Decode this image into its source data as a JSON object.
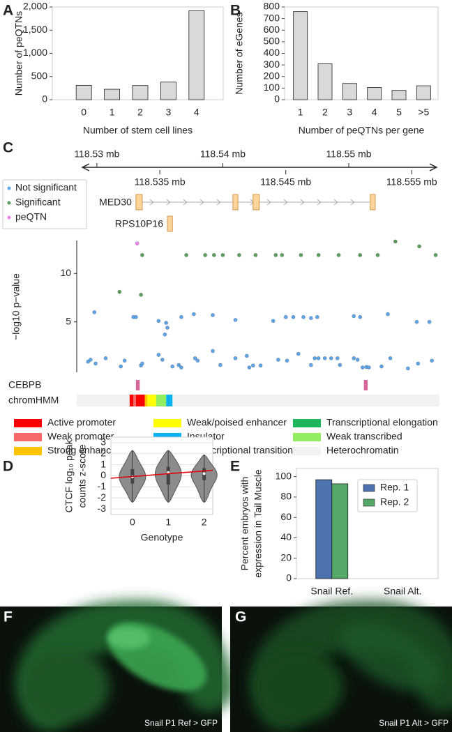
{
  "chart_data": [
    {
      "panel": "A",
      "type": "bar",
      "categories": [
        "0",
        "1",
        "2",
        "3",
        "4"
      ],
      "values": [
        310,
        225,
        305,
        380,
        1920
      ],
      "color": "#d9d9d9",
      "ylim": [
        0,
        2000
      ],
      "yticks": [
        0,
        500,
        {
          "value": 1000,
          "label": "1,000"
        },
        {
          "value": 1500,
          "label": "1,500"
        },
        {
          "value": 2000,
          "label": "2,000"
        }
      ],
      "ylabel": [
        "Number of peQTNs"
      ],
      "xlabel": "Number of stem cell lines"
    },
    {
      "panel": "B",
      "type": "bar",
      "categories": [
        "1",
        "2",
        "3",
        "4",
        "5",
        ">5"
      ],
      "values": [
        760,
        310,
        140,
        105,
        80,
        120
      ],
      "color": "#d9d9d9",
      "ylim": [
        0,
        800
      ],
      "yticks": [
        0,
        100,
        200,
        300,
        400,
        500,
        600,
        700,
        800
      ],
      "ylabel": [
        "Number of eGenes"
      ],
      "xlabel": "Number of peQTNs per gene"
    },
    {
      "panel": "C",
      "type": "scatter",
      "xlim": [
        118.5284,
        118.5572
      ],
      "xticks": [
        {
          "value": 118.53,
          "label": "118.53 mb"
        },
        {
          "value": 118.54,
          "label": "118.54 mb"
        },
        {
          "value": 118.55,
          "label": "118.55 mb"
        }
      ],
      "gene_axis_ticks": [
        {
          "value": 118.535,
          "label": "118.535 mb"
        },
        {
          "value": 118.545,
          "label": "118.545 mb"
        },
        {
          "value": 118.555,
          "label": "118.555 mb"
        }
      ],
      "ylim": [
        -0.2,
        13.4
      ],
      "yticks": [
        5,
        10
      ],
      "ylabel": "−log10 p−value",
      "genes": [
        {
          "name": "MED30",
          "color": "#fdd49a",
          "exons": [
            [
              118.5331,
              118.5336
            ],
            [
              118.5408,
              118.5412
            ],
            [
              118.5424,
              118.5429
            ],
            [
              118.5517,
              118.5521
            ]
          ]
        },
        {
          "name": "RPS10P16",
          "color": "#fdd49a",
          "exons": [
            [
              118.5356,
              118.536
            ]
          ]
        }
      ],
      "series": [
        {
          "name": "Not significant",
          "color": "#5da5e8",
          "x": [
            118.5298,
            118.5329,
            118.5331,
            118.5355,
            118.5356,
            118.5354,
            118.5349,
            118.5367,
            118.5377,
            118.5392,
            118.541,
            118.544,
            118.545,
            118.5456,
            118.5464,
            118.547,
            118.5475,
            118.5504,
            118.5509,
            118.5531,
            118.5554,
            118.5564,
            118.5293,
            118.5295,
            118.5307,
            118.5299,
            118.5319,
            118.5322,
            118.5335,
            118.5336,
            118.5349,
            118.5352,
            118.536,
            118.5365,
            118.5367,
            118.5378,
            118.538,
            118.5392,
            118.5398,
            118.541,
            118.5419,
            118.5421,
            118.5424,
            118.543,
            118.5444,
            118.5451,
            118.546,
            118.547,
            118.5473,
            118.5476,
            118.5481,
            118.5486,
            118.5491,
            118.5493,
            118.5504,
            118.5507,
            118.5511,
            118.5514,
            118.5516,
            118.5526,
            118.5533,
            118.5547,
            118.5555,
            118.5566
          ],
          "y": [
            6.0,
            5.5,
            5.5,
            4.9,
            4.4,
            3.7,
            5.1,
            5.5,
            5.8,
            5.7,
            5.2,
            5.1,
            5.5,
            5.5,
            5.5,
            5.4,
            5.5,
            5.6,
            5.5,
            5.8,
            5.0,
            5.0,
            0.9,
            1.1,
            1.25,
            0.7,
            0.4,
            1.0,
            0.5,
            0.7,
            1.6,
            1.1,
            0.4,
            0.55,
            0.3,
            1.25,
            1.0,
            2.0,
            0.55,
            1.25,
            1.5,
            0.3,
            0.5,
            0.5,
            1.1,
            1.0,
            1.7,
            0.55,
            1.25,
            1.25,
            1.25,
            1.25,
            1.25,
            0.55,
            1.25,
            1.1,
            0.3,
            0.35,
            0.3,
            0.4,
            1.25,
            0.2,
            0.7,
            1.0
          ]
        },
        {
          "name": "Significant",
          "color": "#5a9e5a",
          "x": [
            118.5336,
            118.5371,
            118.5386,
            118.5393,
            118.54,
            118.5413,
            118.5426,
            118.5442,
            118.5447,
            118.5462,
            118.5476,
            118.5492,
            118.5509,
            118.5523,
            118.5569,
            118.5537,
            118.5556,
            118.5318,
            118.5335
          ],
          "y": [
            11.9,
            11.9,
            11.9,
            11.9,
            11.9,
            11.9,
            11.9,
            11.9,
            11.9,
            11.9,
            11.9,
            11.9,
            11.9,
            11.9,
            11.9,
            13.3,
            12.8,
            8.1,
            7.8
          ]
        },
        {
          "name": "peQTN",
          "color": "#ee82ee",
          "x": [
            118.5332
          ],
          "y": [
            13.1
          ]
        }
      ],
      "tracks": [
        {
          "name": "CEBPB",
          "color": "#d6679a",
          "regions": [
            [
              118.5331,
              118.5334
            ],
            [
              118.5512,
              118.5515
            ]
          ]
        },
        {
          "name": "chromHMM",
          "states": [
            {
              "name": "Active promoter",
              "color": "#ff0000",
              "segments": [
                [
                  118.5326,
                  118.5329
                ],
                [
                  118.5331,
                  118.5338
                ]
              ]
            },
            {
              "name": "Weak promoter",
              "color": "#f86a6a",
              "segments": [
                [
                  118.5329,
                  118.5331
                ]
              ]
            },
            {
              "name": "Strong enhancer",
              "color": "#ffc400",
              "segments": [
                [
                  118.5338,
                  118.534
                ]
              ]
            },
            {
              "name": "Weak/poised enhancer",
              "color": "#ffff00",
              "segments": [
                [
                  118.534,
                  118.5347
                ]
              ]
            },
            {
              "name": "Insulator",
              "color": "#0ab0f0",
              "segments": [
                [
                  118.5355,
                  118.536
                ]
              ]
            },
            {
              "name": "Transcriptional transition",
              "color": "#13a04e",
              "segments": []
            },
            {
              "name": "Transcriptional elongation",
              "color": "#1bb55a",
              "segments": []
            },
            {
              "name": "Weak transcribed",
              "color": "#93ee5f",
              "segments": [
                [
                  118.5347,
                  118.5355
                ]
              ]
            },
            {
              "name": "Heterochromatin",
              "color": "#f2f2f2",
              "segments": [
                [
                  118.5284,
                  118.5572
                ]
              ]
            }
          ]
        }
      ]
    },
    {
      "panel": "D",
      "type": "violin",
      "categories": [
        "0",
        "1",
        "2"
      ],
      "color": "#8c8c8c",
      "grid": true,
      "xlim": [
        -0.6,
        2.24
      ],
      "ylim": [
        -3.5,
        3.5
      ],
      "yticks": [
        -3,
        -2,
        -1,
        0,
        1,
        2,
        3
      ],
      "violins": [
        {
          "min": -2.4,
          "q1": -0.7,
          "median": -0.1,
          "q3": 0.6,
          "max": 2.3
        },
        {
          "min": -2.4,
          "q1": -0.8,
          "median": 0.3,
          "q3": 0.8,
          "max": 2.3
        },
        {
          "min": -2.4,
          "q1": -0.4,
          "median": 0.2,
          "q3": 0.7,
          "max": 1.9
        }
      ],
      "trend": {
        "x": [
          -0.6,
          2.24
        ],
        "y": [
          -0.22,
          0.5
        ],
        "color": "#e8000b"
      },
      "ylabel": [
        "CTCF log₁₀ peak",
        "counts z-score"
      ],
      "xlabel": "Genotype"
    },
    {
      "panel": "E",
      "type": "bar",
      "categories": [
        "Snail Ref.",
        "Snail Alt."
      ],
      "series": [
        {
          "name": "Rep. 1",
          "color": "#4c72b0",
          "values": [
            97,
            0
          ]
        },
        {
          "name": "Rep. 2",
          "color": "#55a868",
          "values": [
            93,
            0
          ]
        }
      ],
      "ylim": [
        0,
        108
      ],
      "yticks": [
        0,
        20,
        40,
        60,
        80,
        100
      ],
      "legend": "upper right",
      "ylabel": [
        "Percent embryos with",
        "expression in Tail Muscle"
      ]
    }
  ],
  "images": [
    {
      "panel": "F",
      "caption": "Snail P1 Ref > GFP"
    },
    {
      "panel": "G",
      "caption": "Snail P1 Alt > GFP"
    }
  ]
}
